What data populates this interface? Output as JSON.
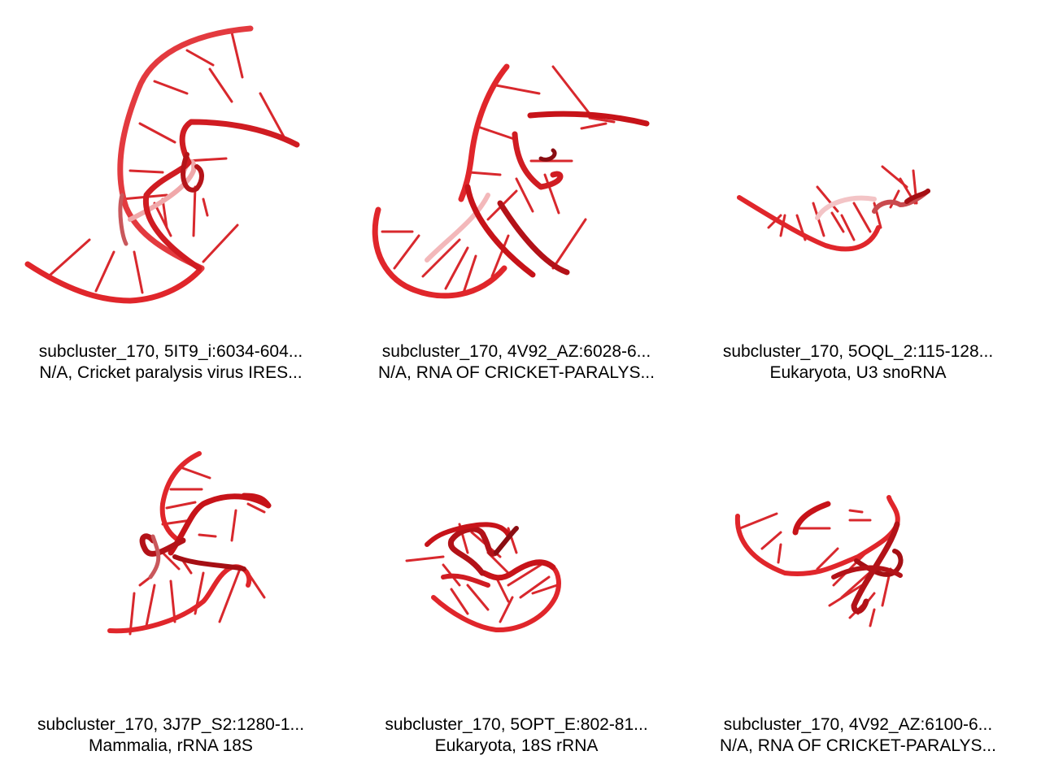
{
  "panels": [
    {
      "line1": "subcluster_170, 5IT9_i:6034-604...",
      "line2": "N/A, Cricket paralysis virus IRES..."
    },
    {
      "line1": "subcluster_170, 4V92_AZ:6028-6...",
      "line2": "N/A, RNA OF CRICKET-PARALYS..."
    },
    {
      "line1": "subcluster_170, 5OQL_2:115-128...",
      "line2": "Eukaryota, U3 snoRNA"
    },
    {
      "line1": "subcluster_170, 3J7P_S2:1280-1...",
      "line2": "Mammalia, rRNA 18S"
    },
    {
      "line1": "subcluster_170, 5OPT_E:802-81...",
      "line2": "Eukaryota, 18S rRNA"
    },
    {
      "line1": "subcluster_170, 4V92_AZ:6100-6...",
      "line2": "N/A, RNA OF CRICKET-PARALYS..."
    }
  ],
  "colors": {
    "backbone": "#e0262b",
    "backbone_dark": "#a50f14",
    "base": "#d8282d",
    "base_light": "#f0a8aa"
  }
}
